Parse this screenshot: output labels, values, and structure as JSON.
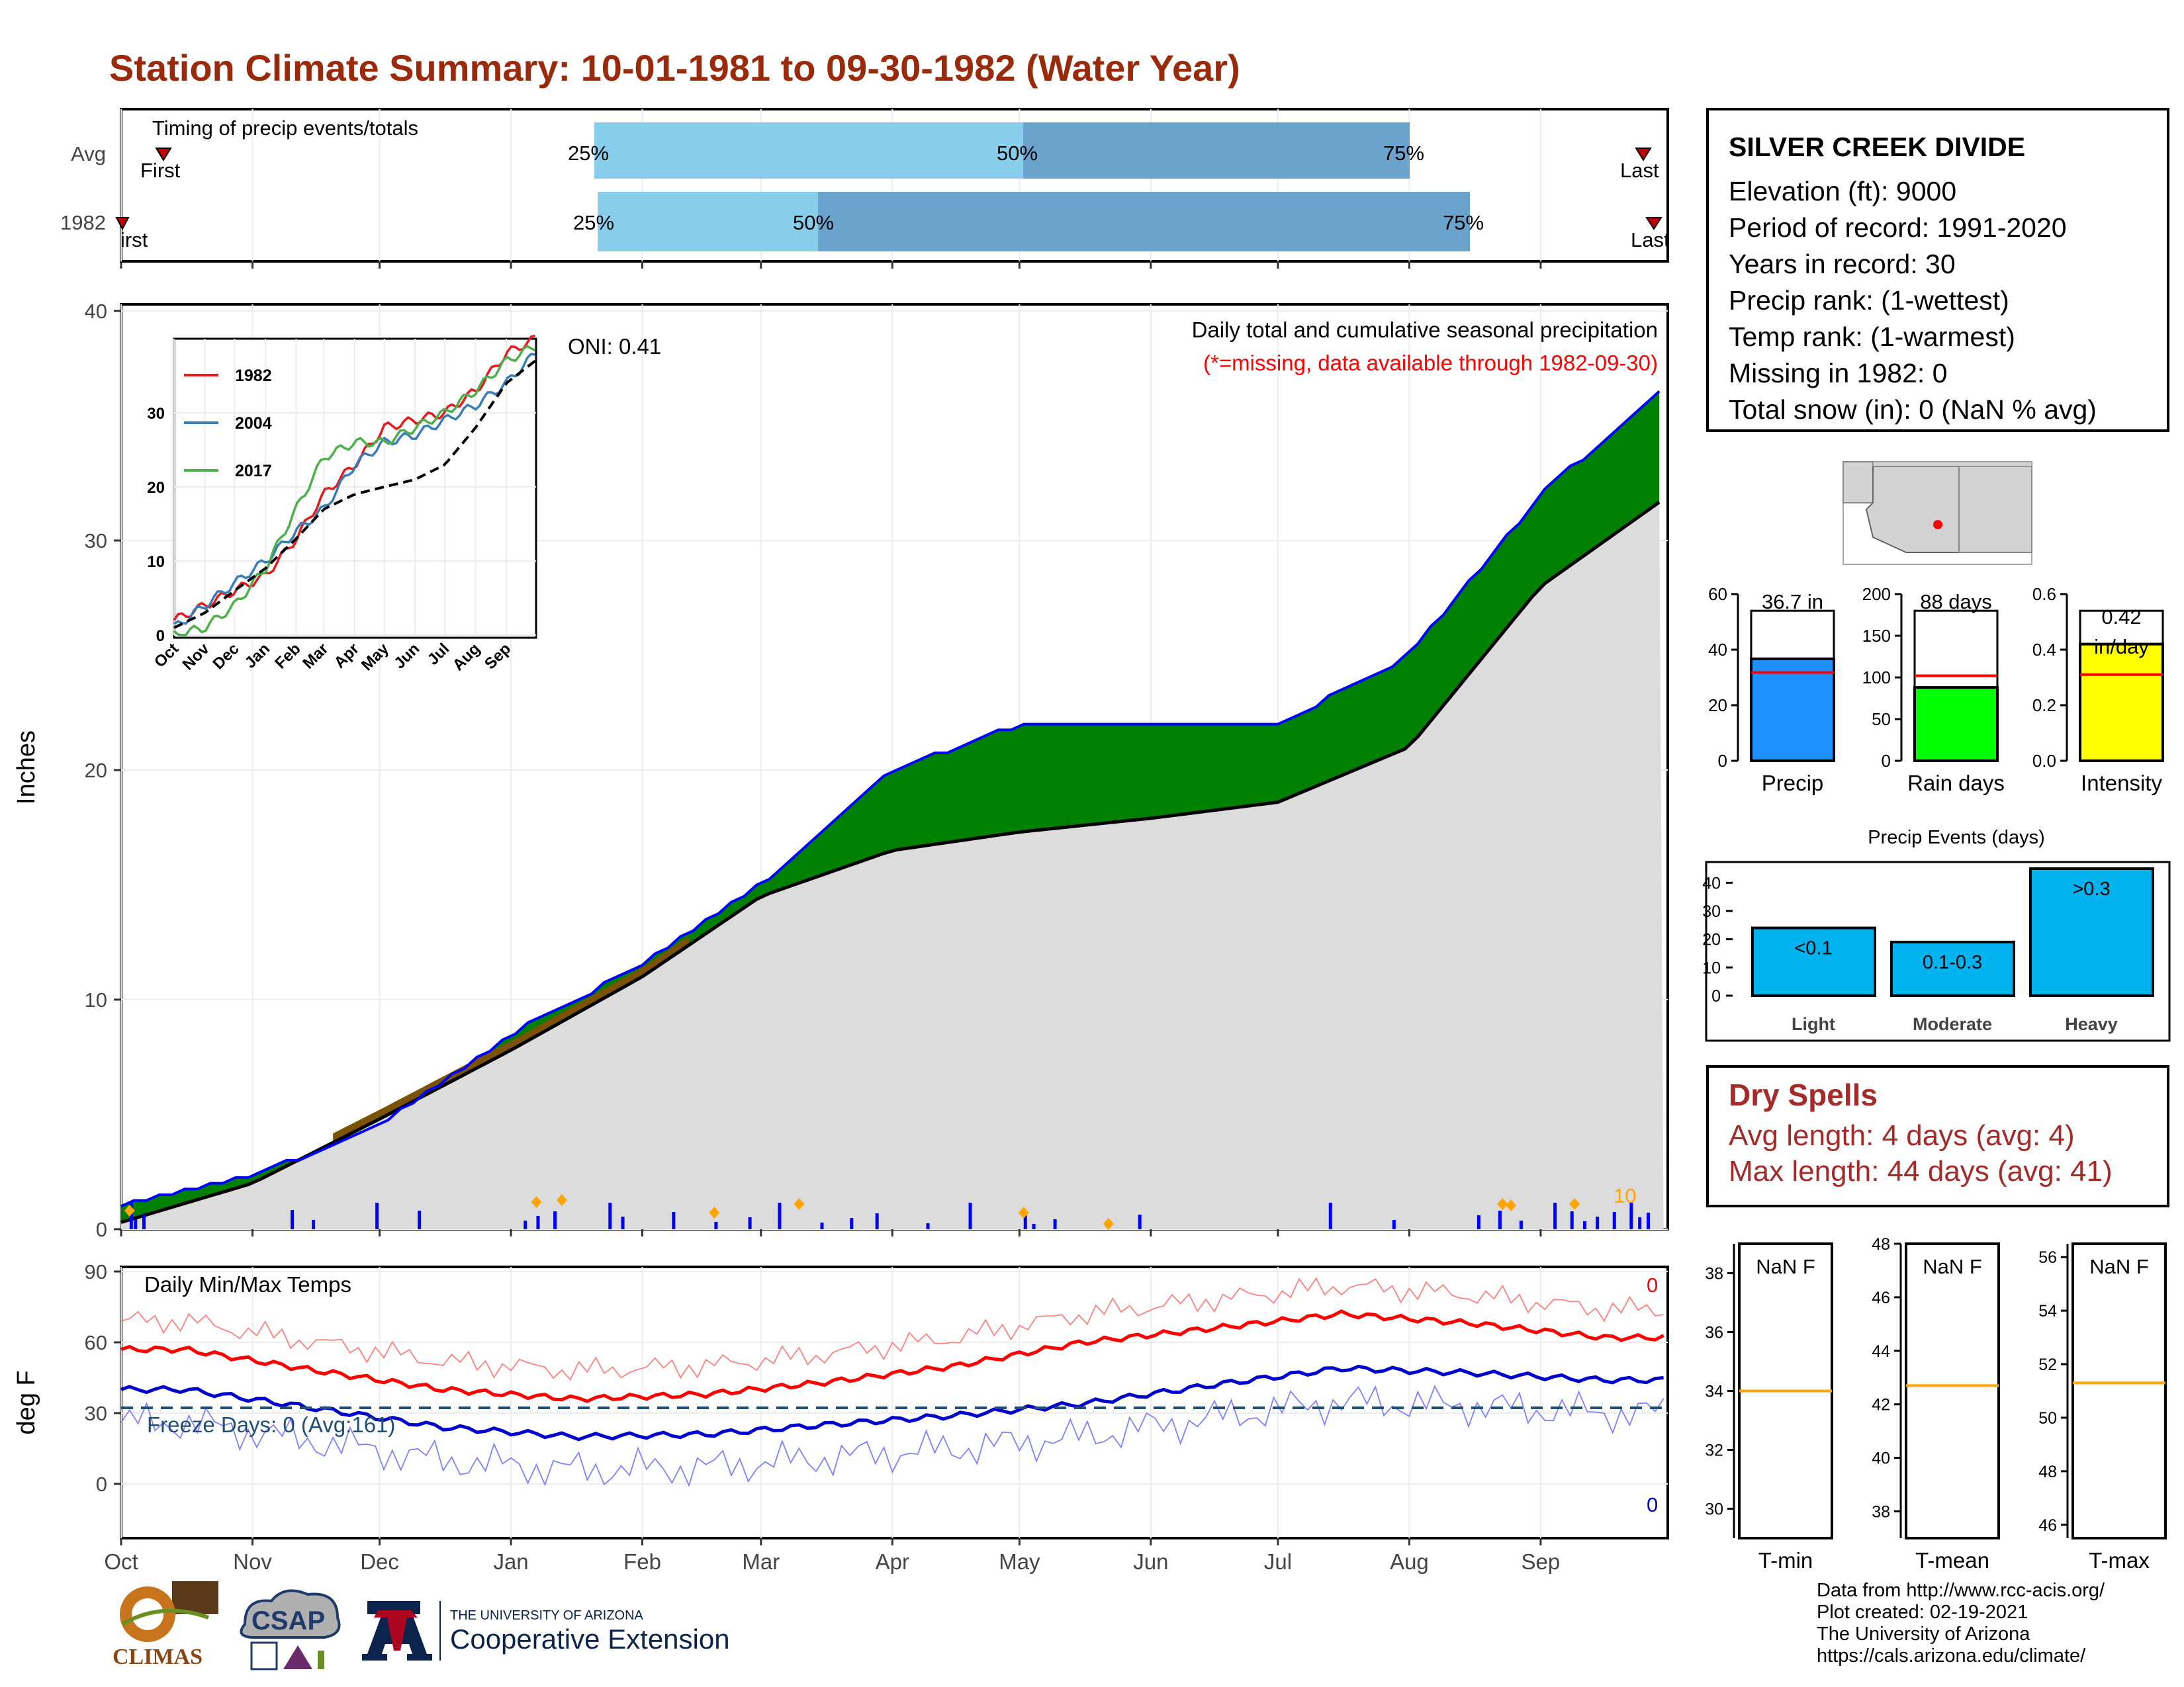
{
  "title": "Station Climate Summary: 10-01-1981 to 09-30-1982 (Water Year)",
  "timing": {
    "title": "Timing of precip events/totals",
    "rows": [
      {
        "label": "Avg",
        "first": "First",
        "last": "Last",
        "q25": "25%",
        "q50": "50%",
        "q75": "75%"
      },
      {
        "label": "1982",
        "first": "First",
        "last": "Last",
        "q25": "25%",
        "q50": "50%",
        "q75": "75%"
      }
    ]
  },
  "station": {
    "name": "SILVER CREEK DIVIDE",
    "elevation": "Elevation (ft): 9000",
    "period": "Period of record: 1991-2020",
    "years": "Years in record: 30",
    "precip_rank": "Precip rank:  (1-wettest)",
    "temp_rank": "Temp rank:  (1-warmest)",
    "missing": "Missing in 1982: 0",
    "snow": "Total snow (in): 0 (NaN % avg)"
  },
  "main_plot": {
    "ylabel": "Inches",
    "subtitle": "Daily total and cumulative seasonal precipitation",
    "note": "(*=missing, data available through 1982-09-30)",
    "oni": "ONI: 0.41",
    "snow_max_label": "10",
    "yticks": [
      "0",
      "10",
      "20",
      "30",
      "40"
    ]
  },
  "inset": {
    "legend": [
      "1982",
      "2004",
      "2017"
    ],
    "yticks": [
      "0",
      "10",
      "20",
      "30"
    ],
    "xticks": [
      "Oct",
      "Nov",
      "Dec",
      "Jan",
      "Feb",
      "Mar",
      "Apr",
      "May",
      "Jun",
      "Jul",
      "Aug",
      "Sep"
    ]
  },
  "temp_plot": {
    "ylabel": "deg F",
    "title": "Daily Min/Max Temps",
    "freeze": "Freeze Days: 0 (Avg:161)",
    "count_top": "0",
    "count_bottom": "0",
    "yticks": [
      "0",
      "30",
      "60",
      "90"
    ]
  },
  "months": [
    "Oct",
    "Nov",
    "Dec",
    "Jan",
    "Feb",
    "Mar",
    "Apr",
    "May",
    "Jun",
    "Jul",
    "Aug",
    "Sep"
  ],
  "summary_bars": [
    {
      "label": "Precip",
      "value_label": "36.7 in",
      "color": "#1e90ff",
      "yticks": [
        "0",
        "20",
        "40",
        "60"
      ]
    },
    {
      "label": "Rain days",
      "value_label": "88 days",
      "color": "#00ff00",
      "yticks": [
        "0",
        "50",
        "100",
        "150",
        "200"
      ]
    },
    {
      "label": "Intensity",
      "value_label": "0.42 in/day",
      "value_label_a": "0.42",
      "value_label_b": "in/day",
      "color": "#ffff00",
      "yticks": [
        "0.0",
        "0.2",
        "0.4",
        "0.6"
      ]
    }
  ],
  "events": {
    "title": "Precip Events (days)",
    "yticks": [
      "0",
      "10",
      "20",
      "30",
      "40"
    ],
    "bars": [
      {
        "label": "Light",
        "bar_text": "<0.1"
      },
      {
        "label": "Moderate",
        "bar_text": "0.1-0.3"
      },
      {
        "label": "Heavy",
        "bar_text": ">0.3"
      }
    ]
  },
  "dry_spells": {
    "title": "Dry Spells",
    "avg": "Avg length: 4 days (avg: 4)",
    "max": "Max length: 44 days (avg: 41)"
  },
  "temp_boxes": [
    {
      "label": "T-min",
      "value": "NaN F",
      "yticks": [
        "30",
        "32",
        "34",
        "36",
        "38"
      ]
    },
    {
      "label": "T-mean",
      "value": "NaN F",
      "yticks": [
        "38",
        "40",
        "42",
        "44",
        "46",
        "48"
      ]
    },
    {
      "label": "T-max",
      "value": "NaN F",
      "yticks": [
        "46",
        "48",
        "50",
        "52",
        "54",
        "56"
      ]
    }
  ],
  "footer": [
    "Data from http://www.rcc-acis.org/",
    "Plot created: 02-19-2021",
    "The University of Arizona",
    "https://cals.arizona.edu/climate/"
  ],
  "logos": {
    "climas": "CLIMAS",
    "csap": "CSAP",
    "ua_small": "THE UNIVERSITY OF ARIZONA",
    "ua_big": "Cooperative Extension"
  },
  "chart_data": [
    {
      "type": "area",
      "title": "Daily total and cumulative seasonal precipitation",
      "ylabel": "Inches",
      "ylim": [
        0,
        40
      ],
      "x": [
        "Oct 1",
        "Nov 1",
        "Dec 1",
        "Jan 1",
        "Feb 1",
        "Mar 1",
        "Apr 1",
        "May 1",
        "Jun 1",
        "Jul 1",
        "Aug 1",
        "Sep 1",
        "Sep 30"
      ],
      "series": [
        {
          "name": "1982",
          "values": [
            1.0,
            2.3,
            4.5,
            8.5,
            11.5,
            15.0,
            20.0,
            22.0,
            22.0,
            22.0,
            25.0,
            32.0,
            36.7
          ]
        },
        {
          "name": "Avg",
          "values": [
            0.3,
            2.0,
            4.8,
            7.8,
            11.0,
            14.5,
            16.5,
            17.3,
            17.9,
            18.6,
            21.0,
            28.0,
            31.8
          ]
        }
      ],
      "daily_precip": [
        {
          "date": "Sep 25",
          "value": 1.2
        },
        {
          "date": "Jan 11",
          "value": 0.7
        },
        {
          "date": "Feb 12",
          "value": 0.6
        },
        {
          "date": "Mar 13",
          "value": 0.8
        }
      ]
    },
    {
      "type": "line",
      "title": "Daily Min/Max Temps",
      "ylabel": "deg F",
      "ylim": [
        -25,
        95
      ],
      "x": [
        "Oct",
        "Nov",
        "Dec",
        "Jan",
        "Feb",
        "Mar",
        "Apr",
        "May",
        "Jun",
        "Jul",
        "Aug",
        "Sep"
      ],
      "series": [
        {
          "name": "Avg max",
          "values": [
            57,
            48,
            40,
            36,
            38,
            43,
            50,
            60,
            66,
            72,
            68,
            62
          ]
        },
        {
          "name": "Avg min",
          "values": [
            40,
            32,
            24,
            20,
            21,
            25,
            29,
            34,
            42,
            49,
            47,
            44
          ]
        }
      ]
    },
    {
      "type": "bar",
      "categories": [
        "Precip",
        "Rain days",
        "Intensity"
      ],
      "values": [
        36.7,
        88,
        0.42
      ],
      "averages": [
        31.8,
        102,
        0.31
      ]
    },
    {
      "type": "bar",
      "title": "Precip Events (days)",
      "categories": [
        "Light",
        "Moderate",
        "Heavy"
      ],
      "values": [
        24,
        19,
        45
      ],
      "ylim": [
        0,
        45
      ]
    }
  ]
}
